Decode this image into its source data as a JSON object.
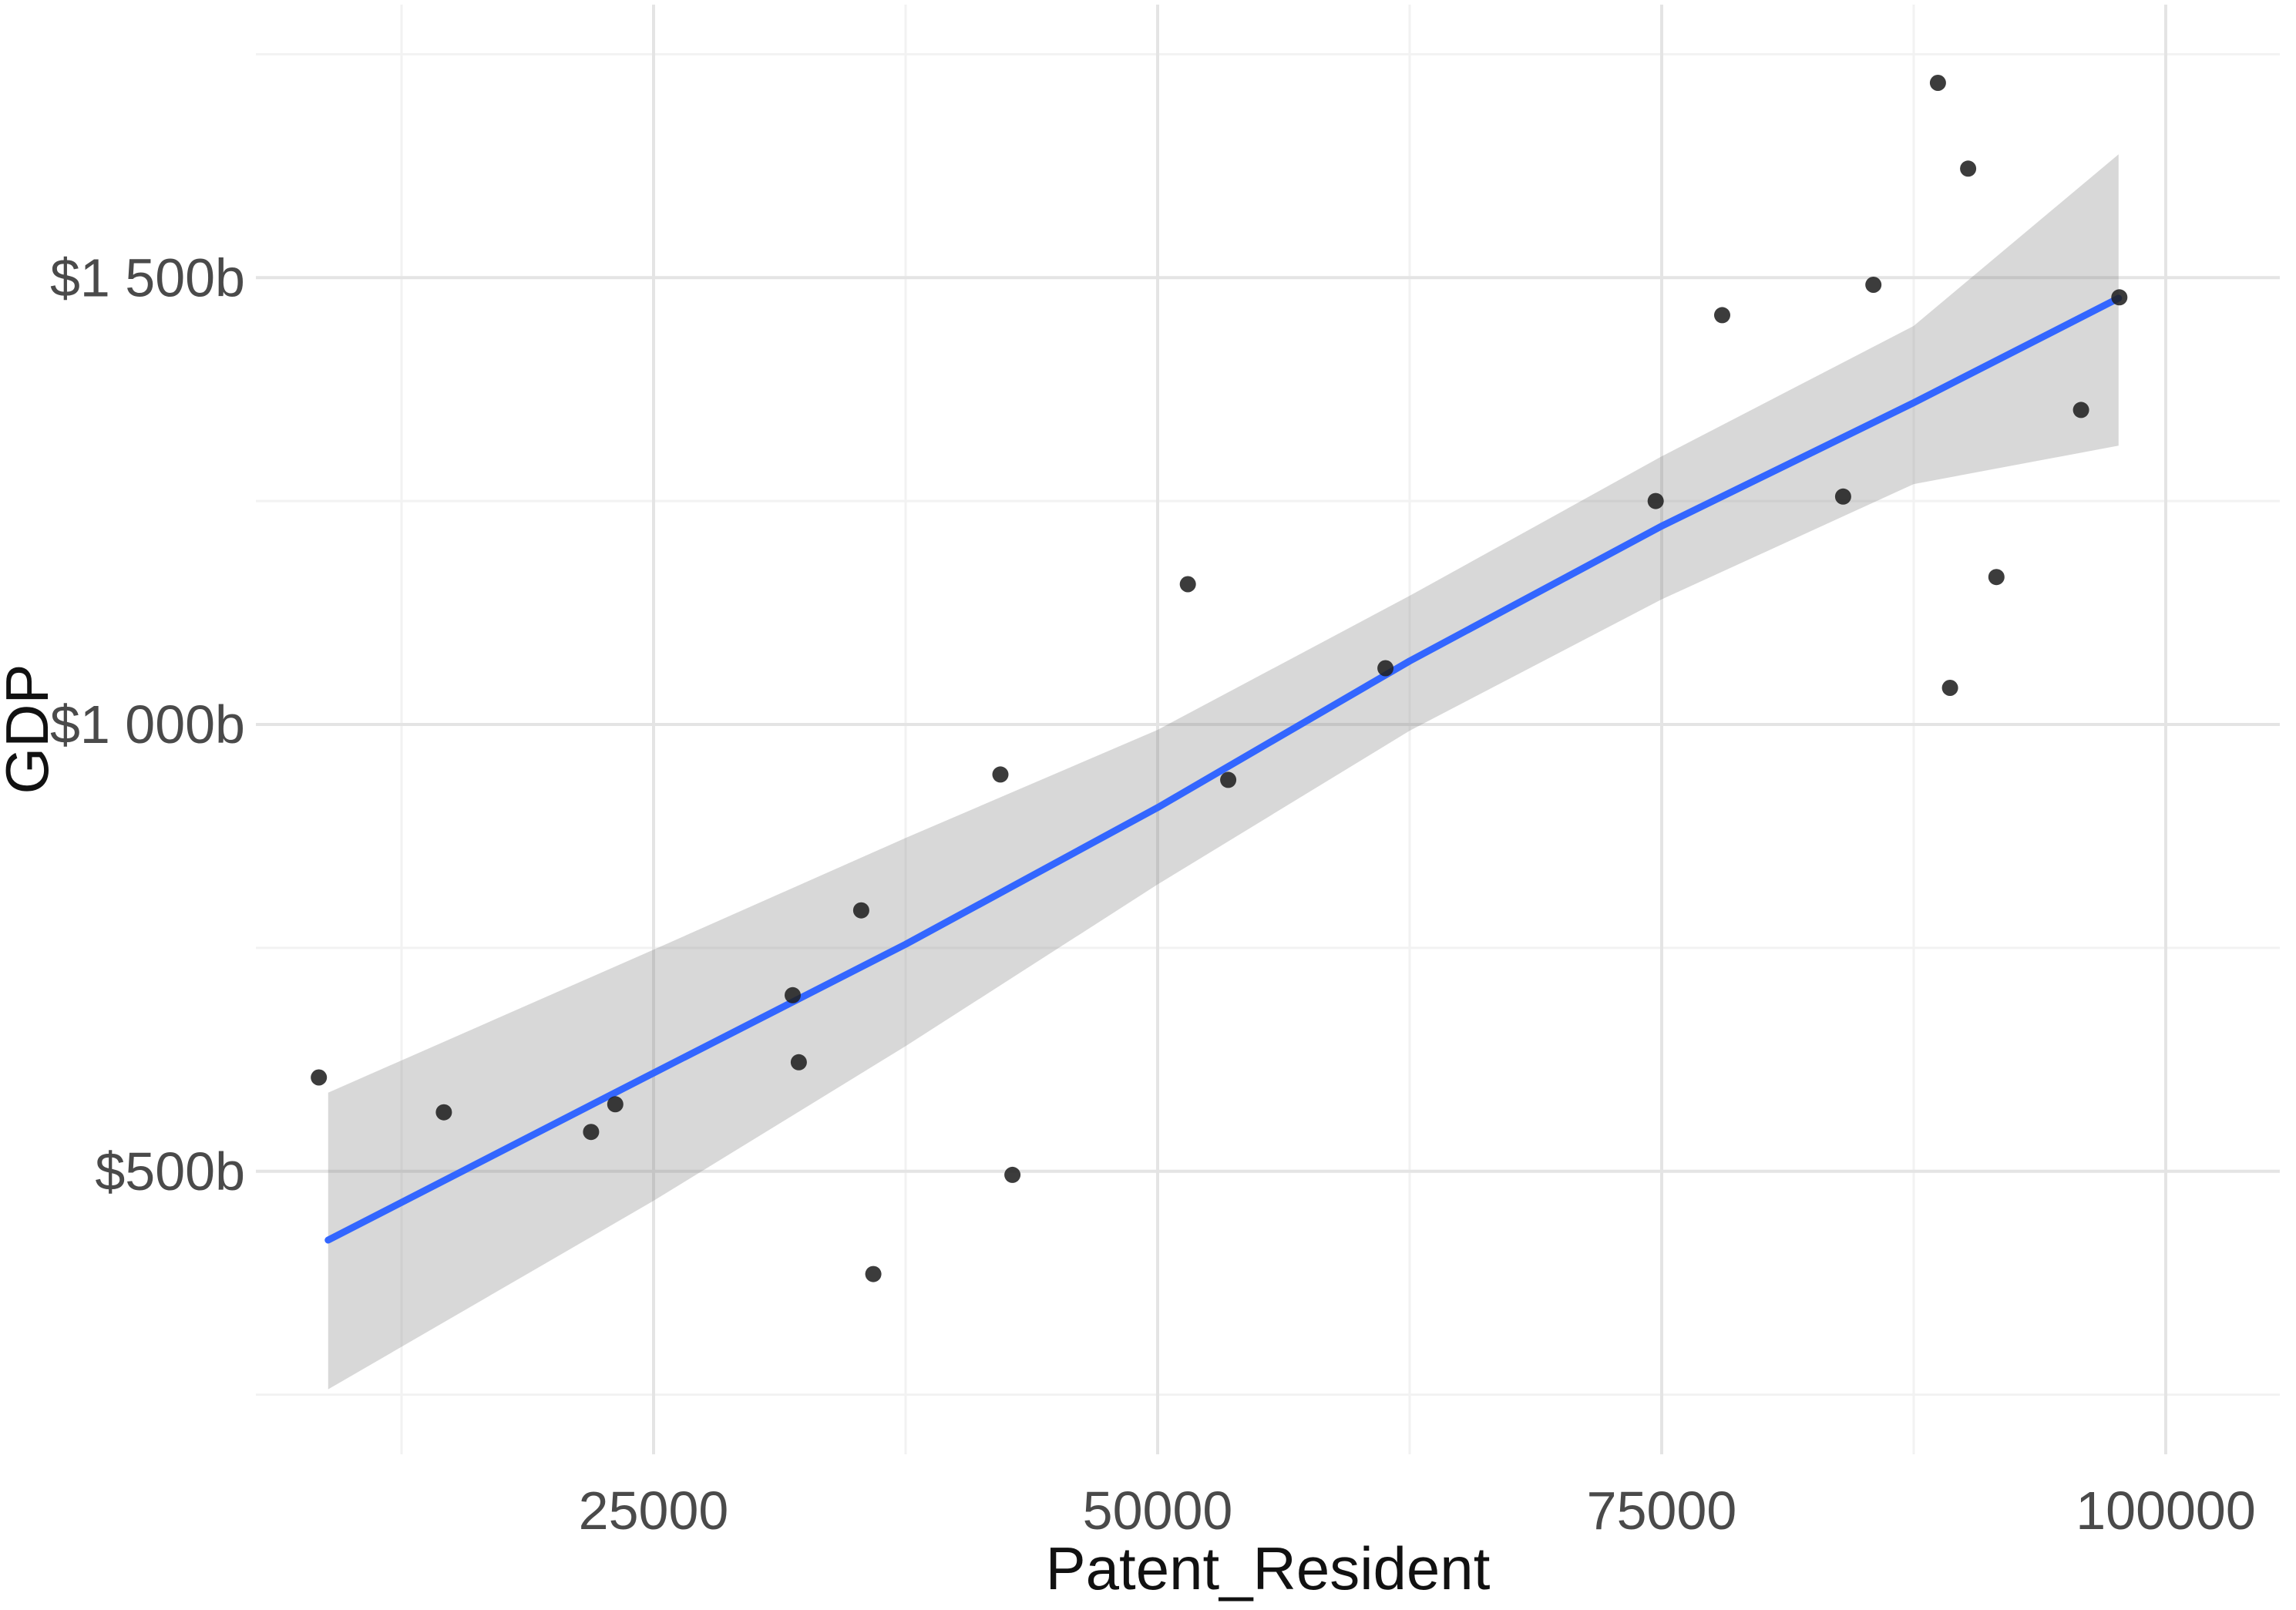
{
  "chart_data": {
    "type": "scatter",
    "title": "",
    "xlabel": "Patent_Resident",
    "ylabel": "GDP",
    "x_tick_values": [
      25000,
      50000,
      75000,
      100000
    ],
    "x_tick_labels": [
      "25000",
      "50000",
      "75000",
      "100000"
    ],
    "y_tick_values": [
      500,
      1000,
      1500
    ],
    "y_tick_labels": [
      "$500b",
      "$1 000b",
      "$1 500b"
    ],
    "x_minor_tick_values": [
      12500,
      37500,
      62500,
      87500
    ],
    "y_minor_tick_values": [
      250,
      750,
      1250,
      1750
    ],
    "xlim": [
      6000,
      105700
    ],
    "ylim": [
      180,
      1800
    ],
    "grid": true,
    "legend_position": "none",
    "points_unit": "x = resident patent applications, y = GDP in billions USD",
    "points": [
      [
        8400,
        605
      ],
      [
        14600,
        566
      ],
      [
        21900,
        544
      ],
      [
        23100,
        575
      ],
      [
        31900,
        697
      ],
      [
        32200,
        622
      ],
      [
        35300,
        792
      ],
      [
        35900,
        385
      ],
      [
        42200,
        944
      ],
      [
        42800,
        496
      ],
      [
        51500,
        1157
      ],
      [
        53500,
        938
      ],
      [
        61300,
        1063
      ],
      [
        74700,
        1250
      ],
      [
        78000,
        1458
      ],
      [
        84000,
        1255
      ],
      [
        85500,
        1492
      ],
      [
        88700,
        1718
      ],
      [
        90200,
        1622
      ],
      [
        89300,
        1041
      ],
      [
        91600,
        1165
      ],
      [
        95800,
        1352
      ],
      [
        97700,
        1478
      ]
    ],
    "regression_line": [
      [
        8860,
        423
      ],
      [
        25000,
        610
      ],
      [
        37500,
        754
      ],
      [
        50000,
        907
      ],
      [
        62500,
        1071
      ],
      [
        75000,
        1222
      ],
      [
        87500,
        1360
      ],
      [
        97660,
        1477
      ]
    ],
    "ci_band_upper": [
      [
        8860,
        588
      ],
      [
        25000,
        748
      ],
      [
        37500,
        873
      ],
      [
        50000,
        994
      ],
      [
        62500,
        1144
      ],
      [
        75000,
        1300
      ],
      [
        87500,
        1446
      ],
      [
        97660,
        1638
      ]
    ],
    "ci_band_lower": [
      [
        8860,
        256
      ],
      [
        25000,
        467
      ],
      [
        37500,
        640
      ],
      [
        50000,
        821
      ],
      [
        62500,
        993
      ],
      [
        75000,
        1140
      ],
      [
        87500,
        1269
      ],
      [
        97660,
        1312
      ]
    ]
  },
  "style": {
    "background_color": "#ffffff",
    "point_color": "#1f1f1f",
    "line_color": "#3366ff",
    "band_color": "rgba(127,127,127,0.30)",
    "major_grid_color": "#e4e4e4",
    "minor_grid_color": "#f2f2f2",
    "tick_label_color": "#4a4a4a",
    "axis_title_color": "#111111"
  }
}
